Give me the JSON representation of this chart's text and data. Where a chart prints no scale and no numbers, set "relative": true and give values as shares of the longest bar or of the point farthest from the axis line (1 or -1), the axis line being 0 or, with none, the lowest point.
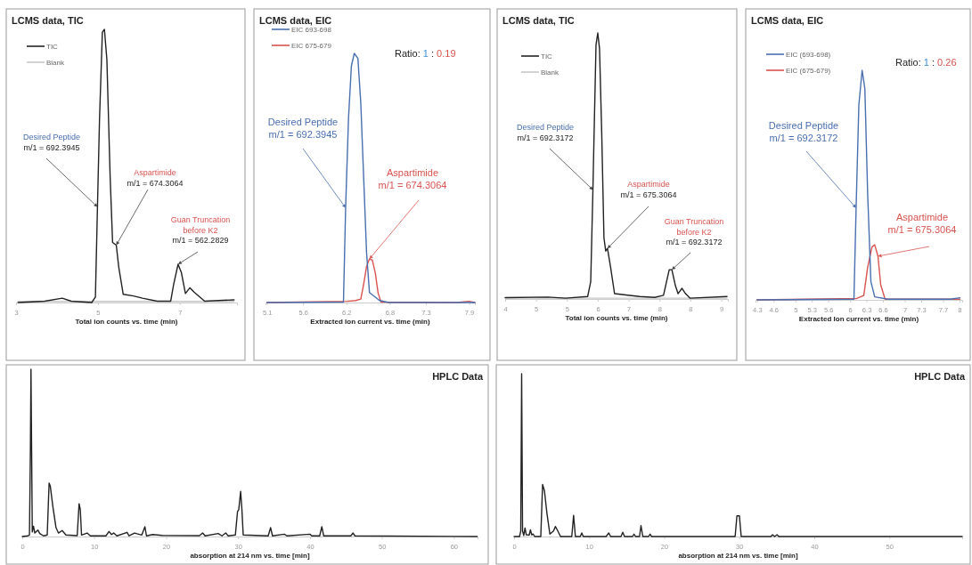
{
  "chart_data": [
    {
      "type": "line",
      "title": "LCMS data, TIC",
      "xlabel": "Total ion counts vs. time (min)",
      "relative": true,
      "legend": "top left",
      "xlim": [
        3,
        8.4
      ],
      "xticks": [
        3,
        5,
        7
      ],
      "series": [
        {
          "name": "TIC",
          "color": "#222222",
          "x": [
            3.05,
            3.7,
            4.13,
            4.35,
            4.85,
            4.94,
            4.99,
            5.04,
            5.11,
            5.16,
            5.22,
            5.3,
            5.36,
            5.45,
            5.51,
            5.62,
            5.87,
            6.09,
            6.45,
            6.78,
            6.85,
            6.96,
            7.04,
            7.14,
            7.25,
            7.35,
            7.61,
            8.33
          ],
          "values": [
            0,
            0.005,
            0.016,
            0.005,
            0,
            0.02,
            0.35,
            0.67,
            0.99,
            1,
            0.89,
            0.46,
            0.22,
            0.21,
            0.13,
            0.03,
            0.024,
            0.016,
            0.005,
            0.005,
            0.065,
            0.14,
            0.11,
            0.033,
            0.054,
            0.038,
            0.005,
            0.01
          ]
        },
        {
          "name": "Blank",
          "color": "#c8c8c8",
          "x": [
            3.05,
            5.5,
            8.33
          ],
          "values": [
            0.004,
            0.004,
            0.004
          ]
        }
      ],
      "annotations": [
        {
          "text": "Desired Peptide\nm/1 = 692.3945",
          "x": 4.99,
          "y": 0.35
        },
        {
          "text": "Aspartimide\nm/1 = 674.3064",
          "x": 5.45,
          "y": 0.21
        },
        {
          "text": "Guan Truncation\nbefore K2\nm/1 = 562.2829",
          "x": 6.96,
          "y": 0.14
        }
      ]
    },
    {
      "type": "line",
      "title": "LCMS data, EIC",
      "xlabel": "Extracted Ion current vs. time (min)",
      "relative": true,
      "legend": "top left",
      "xlim": [
        5.08,
        7.98
      ],
      "xticks": [
        5.1,
        5.6,
        6.2,
        6.8,
        7.3,
        7.9
      ],
      "series": [
        {
          "name": "EIC 693-698",
          "color": "#4a6fb0",
          "x": [
            5.1,
            6.16,
            6.19,
            6.23,
            6.27,
            6.31,
            6.36,
            6.4,
            6.44,
            6.48,
            6.52,
            6.66,
            6.79,
            7.98
          ],
          "values": [
            0,
            0.002,
            0.38,
            0.74,
            0.95,
            1,
            0.98,
            0.8,
            0.5,
            0.2,
            0.04,
            0.008,
            0,
            0
          ]
        },
        {
          "name": "EIC 675-679",
          "color": "#d9534f",
          "x": [
            5.1,
            6.21,
            6.33,
            6.4,
            6.44,
            6.48,
            6.52,
            6.56,
            6.6,
            6.64,
            6.68,
            7.73,
            7.9,
            7.98
          ],
          "values": [
            0,
            0.005,
            0.008,
            0.014,
            0.074,
            0.145,
            0.175,
            0.17,
            0.12,
            0.038,
            0.002,
            0,
            0.005,
            0
          ]
        }
      ],
      "annotations": [
        {
          "text": "Desired Peptide\nm/1 = 692.3945",
          "x": 6.19,
          "y": 0.38
        },
        {
          "text": "Aspartimide\nm/1 = 674.3064",
          "x": 6.52,
          "y": 0.175
        },
        "Ratio: 1 : 0.19"
      ]
    },
    {
      "type": "line",
      "title": "LCMS data, TIC",
      "xlabel": "Total ion counts vs. time (min)",
      "relative": true,
      "legend": "top left",
      "xlim": [
        4,
        9.05
      ],
      "xticks": [
        {
          "value": 4,
          "label": "4"
        },
        {
          "value": 4.7,
          "label": "5"
        },
        {
          "value": 5.4,
          "label": "5"
        },
        {
          "value": 6.1,
          "label": "6"
        },
        {
          "value": 6.8,
          "label": "7"
        },
        {
          "value": 7.5,
          "label": "8"
        },
        {
          "value": 8.2,
          "label": "8"
        },
        {
          "value": 8.9,
          "label": "9"
        }
      ],
      "series": [
        {
          "name": "TIC",
          "color": "#222222",
          "x": [
            4.0,
            4.97,
            5.37,
            5.87,
            5.94,
            5.99,
            6.01,
            6.06,
            6.1,
            6.14,
            6.19,
            6.24,
            6.28,
            6.32,
            6.39,
            6.48,
            6.78,
            7.05,
            7.39,
            7.59,
            7.72,
            7.78,
            7.86,
            7.92,
            8.01,
            8.09,
            8.19,
            9.03
          ],
          "values": [
            0.005,
            0.007,
            0.003,
            0.009,
            0.065,
            0.41,
            0.57,
            0.955,
            1,
            0.94,
            0.62,
            0.23,
            0.18,
            0.19,
            0.12,
            0.02,
            0.014,
            0.009,
            0.006,
            0.014,
            0.11,
            0.11,
            0.05,
            0.02,
            0.04,
            0.02,
            0.003,
            0.009
          ]
        },
        {
          "name": "Blank",
          "color": "#c8c8c8",
          "x": [
            4.0,
            6.5,
            9.03
          ],
          "values": [
            0.003,
            0.003,
            0.003
          ]
        }
      ],
      "annotations": [
        {
          "text": "Desired Peptide\nm/1 = 692.3172",
          "x": 5.99,
          "y": 0.41
        },
        {
          "text": "Aspartimide\nm/1 = 675.3064",
          "x": 6.32,
          "y": 0.19
        },
        {
          "text": "Guan Truncation\nbefore K2\nm/1 = 692.3172",
          "x": 7.78,
          "y": 0.11
        }
      ]
    },
    {
      "type": "line",
      "title": "LCMS data, EIC",
      "xlabel": "Extracted Ion current vs. time (min)",
      "relative": true,
      "legend": "top left",
      "xlim": [
        4.27,
        8.05
      ],
      "xticks": [
        4.3,
        4.6,
        5.0,
        5.3,
        5.6,
        6.0,
        6.3,
        6.6,
        7.0,
        7.3,
        7.7,
        8.0
      ],
      "series": [
        {
          "name": "EIC (693-698)",
          "color": "#4a6fb0",
          "x": [
            4.3,
            6.07,
            6.11,
            6.16,
            6.22,
            6.27,
            6.32,
            6.38,
            6.45,
            6.69,
            7.83,
            8.01
          ],
          "values": [
            0,
            0.003,
            0.4,
            0.85,
            1,
            0.92,
            0.47,
            0.08,
            0.013,
            0.003,
            0.003,
            0.009
          ]
        },
        {
          "name": "EIC (675-679)",
          "color": "#d9534f",
          "x": [
            4.3,
            6.12,
            6.25,
            6.32,
            6.4,
            6.45,
            6.51,
            6.56,
            6.64,
            8.01
          ],
          "values": [
            0,
            0.006,
            0.019,
            0.14,
            0.23,
            0.24,
            0.19,
            0.065,
            0.003,
            0.003
          ]
        }
      ],
      "annotations": [
        {
          "text": "Desired Peptide\nm/1 = 692.3172",
          "x": 6.11,
          "y": 0.4
        },
        {
          "text": "Aspartimide\nm/1 = 675.3064",
          "x": 6.51,
          "y": 0.19
        },
        "Ratio: 1 : 0.26"
      ]
    },
    {
      "type": "line",
      "title": "HPLC Data",
      "xlabel": "absorption at 214 nm vs. time [min]",
      "relative": true,
      "xlim": [
        0,
        63.3
      ],
      "xticks": [
        0,
        10,
        20,
        30,
        40,
        50,
        60
      ],
      "series": [
        {
          "color": "#222222",
          "x": [
            0,
            0.78,
            1.0,
            1.13,
            1.21,
            1.3,
            1.39,
            1.56,
            1.74,
            2.17,
            2.43,
            2.95,
            3.47,
            3.73,
            3.9,
            4.25,
            4.69,
            5.03,
            5.55,
            6.07,
            7.64,
            7.9,
            8.07,
            8.24,
            9.02,
            9.46,
            11.63,
            12.06,
            12.41,
            12.71,
            13.15,
            14.58,
            14.84,
            15.62,
            16.62,
            17.05,
            17.27,
            18.13,
            19.44,
            24.64,
            25.08,
            25.42,
            27.25,
            27.77,
            28.29,
            28.63,
            29.63,
            29.93,
            30.1,
            30.36,
            30.54,
            30.72,
            34.19,
            34.53,
            34.79,
            36.44,
            36.79,
            40.0,
            40.26,
            41.35,
            41.65,
            41.91,
            45.68,
            45.99,
            46.25,
            63.25
          ],
          "values": [
            0,
            0.004,
            0.009,
            0.52,
            1,
            0.52,
            0.027,
            0.062,
            0.021,
            0.039,
            0.018,
            0.004,
            0.009,
            0.32,
            0.3,
            0.18,
            0.053,
            0.021,
            0.036,
            0.009,
            0.005,
            0.196,
            0.16,
            0.009,
            0.021,
            0.004,
            0.004,
            0.03,
            0.012,
            0.021,
            0.004,
            0.025,
            0.004,
            0.021,
            0.009,
            0.059,
            0.004,
            0.012,
            0.007,
            0.005,
            0.021,
            0.004,
            0.018,
            0.004,
            0.021,
            0.004,
            0.009,
            0.15,
            0.16,
            0.27,
            0.16,
            0.009,
            0.004,
            0.053,
            0.004,
            0.014,
            0.004,
            0.014,
            0.004,
            0.004,
            0.059,
            0.004,
            0.004,
            0.021,
            0.004,
            0
          ]
        }
      ]
    },
    {
      "type": "line",
      "title": "HPLC Data",
      "xlabel": "absorption at 214 nm vs. time [min]",
      "relative": true,
      "xlim": [
        0,
        59.7
      ],
      "xticks": [
        0,
        10,
        20,
        30,
        40,
        50
      ],
      "series": [
        {
          "color": "#222222",
          "x": [
            0,
            0.73,
            0.89,
            1.01,
            1.13,
            1.29,
            1.46,
            1.62,
            2.02,
            2.18,
            2.35,
            2.55,
            2.75,
            3.56,
            3.8,
            4.05,
            4.37,
            4.77,
            5.26,
            5.5,
            5.83,
            6.19,
            7.69,
            7.93,
            8.17,
            8.82,
            9.02,
            9.22,
            12.26,
            12.62,
            12.86,
            14.24,
            14.48,
            14.72,
            15.78,
            15.98,
            16.18,
            16.71,
            16.91,
            17.15,
            17.92,
            18.12,
            18.33,
            29.45,
            29.69,
            30.02,
            30.26,
            34.22,
            34.43,
            34.71,
            35.03,
            35.28,
            50.08,
            59.7
          ],
          "values": [
            0,
            0,
            0.034,
            1,
            0.034,
            0.006,
            0.052,
            0.011,
            0.009,
            0.041,
            0.011,
            0.015,
            0,
            0,
            0.32,
            0.28,
            0.146,
            0.015,
            0.034,
            0.062,
            0.034,
            0,
            0,
            0.13,
            0,
            0,
            0.022,
            0,
            0,
            0.022,
            0,
            0,
            0.026,
            0,
            0,
            0.015,
            0,
            0,
            0.067,
            0,
            0,
            0.015,
            0,
            0,
            0.127,
            0.127,
            0,
            0,
            0.011,
            0,
            0.011,
            0,
            0,
            0
          ]
        }
      ]
    }
  ]
}
